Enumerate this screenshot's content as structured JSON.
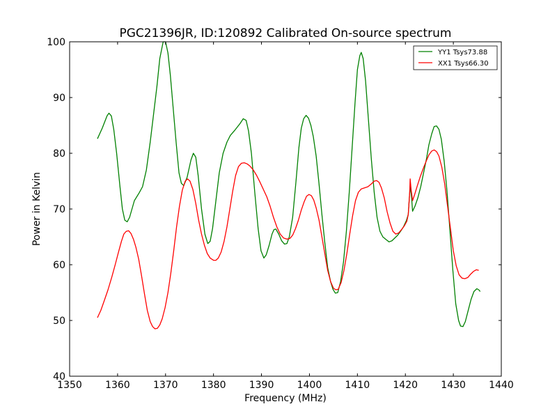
{
  "chart_data": {
    "type": "line",
    "title": "PGC21396JR, ID:120892 Calibrated On-source spectrum",
    "xlabel": "Frequency (MHz)",
    "ylabel": "Power in Kelvin",
    "xlim": [
      1350,
      1440
    ],
    "ylim": [
      40,
      100
    ],
    "xticks": [
      1350,
      1360,
      1370,
      1380,
      1390,
      1400,
      1410,
      1420,
      1430,
      1440
    ],
    "yticks": [
      40,
      50,
      60,
      70,
      80,
      90,
      100
    ],
    "grid": false,
    "legend_position": "top-right",
    "series": [
      {
        "name": "YY1 Tsys73.88",
        "color": "#008000",
        "points": [
          [
            1355.8,
            82.6
          ],
          [
            1356.8,
            84.5
          ],
          [
            1357.8,
            86.7
          ],
          [
            1358.2,
            87.2
          ],
          [
            1358.7,
            86.7
          ],
          [
            1359.2,
            84.3
          ],
          [
            1359.8,
            80.0
          ],
          [
            1360.5,
            74.0
          ],
          [
            1361.0,
            70.0
          ],
          [
            1361.5,
            68.0
          ],
          [
            1362.0,
            67.7
          ],
          [
            1362.5,
            68.5
          ],
          [
            1363.5,
            71.5
          ],
          [
            1364.5,
            72.9
          ],
          [
            1365.2,
            74.0
          ],
          [
            1366.0,
            77.0
          ],
          [
            1366.8,
            82.0
          ],
          [
            1367.5,
            87.0
          ],
          [
            1368.2,
            92.0
          ],
          [
            1368.8,
            97.0
          ],
          [
            1369.5,
            100.0
          ],
          [
            1370.0,
            100.0
          ],
          [
            1370.5,
            98.0
          ],
          [
            1371.0,
            94.0
          ],
          [
            1371.6,
            88.0
          ],
          [
            1372.2,
            82.0
          ],
          [
            1372.8,
            76.5
          ],
          [
            1373.3,
            74.6
          ],
          [
            1373.8,
            74.2
          ],
          [
            1374.5,
            75.7
          ],
          [
            1375.3,
            78.8
          ],
          [
            1375.8,
            80.0
          ],
          [
            1376.3,
            79.3
          ],
          [
            1376.8,
            76.0
          ],
          [
            1377.5,
            70.0
          ],
          [
            1378.2,
            65.5
          ],
          [
            1378.8,
            63.8
          ],
          [
            1379.3,
            64.2
          ],
          [
            1379.8,
            66.5
          ],
          [
            1380.5,
            71.5
          ],
          [
            1381.2,
            76.5
          ],
          [
            1382.0,
            80.0
          ],
          [
            1382.8,
            82.0
          ],
          [
            1383.5,
            83.2
          ],
          [
            1384.5,
            84.2
          ],
          [
            1385.5,
            85.3
          ],
          [
            1386.2,
            86.2
          ],
          [
            1386.8,
            85.9
          ],
          [
            1387.3,
            84.0
          ],
          [
            1387.9,
            80.0
          ],
          [
            1388.6,
            73.0
          ],
          [
            1389.3,
            66.5
          ],
          [
            1389.9,
            62.5
          ],
          [
            1390.5,
            61.2
          ],
          [
            1391.0,
            61.8
          ],
          [
            1391.6,
            63.5
          ],
          [
            1392.2,
            65.5
          ],
          [
            1392.6,
            66.3
          ],
          [
            1393.0,
            66.4
          ],
          [
            1393.6,
            65.5
          ],
          [
            1394.2,
            64.3
          ],
          [
            1394.8,
            63.7
          ],
          [
            1395.3,
            63.8
          ],
          [
            1395.8,
            65.0
          ],
          [
            1396.5,
            68.5
          ],
          [
            1397.2,
            75.0
          ],
          [
            1397.8,
            81.0
          ],
          [
            1398.3,
            84.5
          ],
          [
            1398.8,
            86.2
          ],
          [
            1399.3,
            86.8
          ],
          [
            1399.8,
            86.3
          ],
          [
            1400.3,
            85.0
          ],
          [
            1400.8,
            83.0
          ],
          [
            1401.4,
            79.5
          ],
          [
            1402.0,
            74.5
          ],
          [
            1402.6,
            69.0
          ],
          [
            1403.2,
            64.0
          ],
          [
            1403.8,
            59.5
          ],
          [
            1404.4,
            57.0
          ],
          [
            1404.9,
            55.6
          ],
          [
            1405.4,
            54.9
          ],
          [
            1405.9,
            55.0
          ],
          [
            1406.5,
            57.0
          ],
          [
            1407.1,
            60.5
          ],
          [
            1407.7,
            66.0
          ],
          [
            1408.3,
            73.0
          ],
          [
            1408.9,
            81.0
          ],
          [
            1409.5,
            89.0
          ],
          [
            1410.0,
            95.0
          ],
          [
            1410.5,
            97.5
          ],
          [
            1410.8,
            98.1
          ],
          [
            1411.2,
            97.0
          ],
          [
            1411.7,
            93.0
          ],
          [
            1412.3,
            86.0
          ],
          [
            1412.9,
            79.0
          ],
          [
            1413.5,
            73.0
          ],
          [
            1414.1,
            68.5
          ],
          [
            1414.7,
            66.0
          ],
          [
            1415.3,
            65.0
          ],
          [
            1416.0,
            64.5
          ],
          [
            1416.6,
            64.1
          ],
          [
            1417.2,
            64.3
          ],
          [
            1417.8,
            64.8
          ],
          [
            1418.4,
            65.3
          ],
          [
            1419.0,
            66.0
          ],
          [
            1419.6,
            66.8
          ],
          [
            1420.2,
            67.9
          ],
          [
            1420.6,
            69.0
          ],
          [
            1421.0,
            74.2
          ],
          [
            1421.3,
            72.0
          ],
          [
            1421.5,
            69.6
          ],
          [
            1422.0,
            70.5
          ],
          [
            1422.6,
            72.0
          ],
          [
            1423.2,
            74.0
          ],
          [
            1423.8,
            76.5
          ],
          [
            1424.4,
            79.0
          ],
          [
            1424.9,
            81.5
          ],
          [
            1425.5,
            83.5
          ],
          [
            1426.0,
            84.8
          ],
          [
            1426.5,
            84.9
          ],
          [
            1427.0,
            84.3
          ],
          [
            1427.5,
            82.5
          ],
          [
            1428.1,
            78.5
          ],
          [
            1428.7,
            73.0
          ],
          [
            1429.3,
            66.0
          ],
          [
            1429.9,
            59.0
          ],
          [
            1430.5,
            53.0
          ],
          [
            1431.1,
            50.0
          ],
          [
            1431.5,
            49.0
          ],
          [
            1432.0,
            48.9
          ],
          [
            1432.5,
            49.8
          ],
          [
            1433.1,
            51.8
          ],
          [
            1433.7,
            53.8
          ],
          [
            1434.3,
            55.2
          ],
          [
            1434.9,
            55.7
          ],
          [
            1435.3,
            55.5
          ],
          [
            1435.6,
            55.2
          ]
        ]
      },
      {
        "name": "XX1 Tsys66.30",
        "color": "#ff0000",
        "points": [
          [
            1355.8,
            50.5
          ],
          [
            1356.5,
            51.8
          ],
          [
            1357.2,
            53.5
          ],
          [
            1358.0,
            55.5
          ],
          [
            1358.8,
            57.8
          ],
          [
            1359.5,
            60.0
          ],
          [
            1360.2,
            62.3
          ],
          [
            1360.8,
            64.2
          ],
          [
            1361.3,
            65.5
          ],
          [
            1361.8,
            66.0
          ],
          [
            1362.3,
            66.1
          ],
          [
            1362.8,
            65.6
          ],
          [
            1363.3,
            64.6
          ],
          [
            1363.8,
            63.2
          ],
          [
            1364.4,
            61.0
          ],
          [
            1365.0,
            58.0
          ],
          [
            1365.6,
            54.8
          ],
          [
            1366.2,
            51.8
          ],
          [
            1366.8,
            49.8
          ],
          [
            1367.3,
            48.9
          ],
          [
            1367.8,
            48.5
          ],
          [
            1368.3,
            48.6
          ],
          [
            1368.8,
            49.2
          ],
          [
            1369.3,
            50.3
          ],
          [
            1369.9,
            52.3
          ],
          [
            1370.5,
            55.0
          ],
          [
            1371.1,
            58.5
          ],
          [
            1371.7,
            62.5
          ],
          [
            1372.3,
            66.8
          ],
          [
            1372.9,
            70.5
          ],
          [
            1373.5,
            73.4
          ],
          [
            1374.1,
            75.0
          ],
          [
            1374.6,
            75.4
          ],
          [
            1375.1,
            75.0
          ],
          [
            1375.7,
            73.5
          ],
          [
            1376.3,
            71.0
          ],
          [
            1376.9,
            68.0
          ],
          [
            1377.5,
            65.5
          ],
          [
            1378.1,
            63.5
          ],
          [
            1378.7,
            62.0
          ],
          [
            1379.3,
            61.2
          ],
          [
            1380.0,
            60.8
          ],
          [
            1380.5,
            60.8
          ],
          [
            1381.0,
            61.2
          ],
          [
            1381.6,
            62.3
          ],
          [
            1382.2,
            64.2
          ],
          [
            1382.8,
            66.8
          ],
          [
            1383.4,
            70.0
          ],
          [
            1384.0,
            73.2
          ],
          [
            1384.6,
            76.0
          ],
          [
            1385.2,
            77.6
          ],
          [
            1385.8,
            78.2
          ],
          [
            1386.4,
            78.3
          ],
          [
            1387.0,
            78.1
          ],
          [
            1387.6,
            77.7
          ],
          [
            1388.3,
            77.0
          ],
          [
            1389.0,
            76.0
          ],
          [
            1389.7,
            74.8
          ],
          [
            1390.4,
            73.5
          ],
          [
            1391.1,
            72.2
          ],
          [
            1391.8,
            70.5
          ],
          [
            1392.5,
            68.5
          ],
          [
            1393.2,
            66.8
          ],
          [
            1393.9,
            65.5
          ],
          [
            1394.6,
            64.8
          ],
          [
            1395.3,
            64.6
          ],
          [
            1395.9,
            64.7
          ],
          [
            1396.5,
            65.3
          ],
          [
            1397.1,
            66.5
          ],
          [
            1397.7,
            68.0
          ],
          [
            1398.3,
            69.8
          ],
          [
            1398.9,
            71.3
          ],
          [
            1399.4,
            72.3
          ],
          [
            1399.9,
            72.6
          ],
          [
            1400.4,
            72.4
          ],
          [
            1400.9,
            71.6
          ],
          [
            1401.4,
            70.2
          ],
          [
            1402.0,
            68.0
          ],
          [
            1402.6,
            65.0
          ],
          [
            1403.2,
            62.0
          ],
          [
            1403.8,
            59.0
          ],
          [
            1404.4,
            57.0
          ],
          [
            1405.0,
            55.8
          ],
          [
            1405.5,
            55.5
          ],
          [
            1406.0,
            55.6
          ],
          [
            1406.6,
            56.8
          ],
          [
            1407.2,
            59.0
          ],
          [
            1407.8,
            62.0
          ],
          [
            1408.4,
            65.5
          ],
          [
            1409.0,
            68.8
          ],
          [
            1409.6,
            71.5
          ],
          [
            1410.2,
            73.0
          ],
          [
            1410.8,
            73.6
          ],
          [
            1411.5,
            73.8
          ],
          [
            1412.2,
            74.0
          ],
          [
            1412.9,
            74.5
          ],
          [
            1413.5,
            75.0
          ],
          [
            1414.0,
            75.1
          ],
          [
            1414.5,
            74.8
          ],
          [
            1415.0,
            73.8
          ],
          [
            1415.6,
            72.0
          ],
          [
            1416.2,
            69.5
          ],
          [
            1416.8,
            67.5
          ],
          [
            1417.4,
            66.0
          ],
          [
            1418.0,
            65.5
          ],
          [
            1418.6,
            65.7
          ],
          [
            1419.2,
            66.3
          ],
          [
            1419.8,
            67.0
          ],
          [
            1420.3,
            67.8
          ],
          [
            1420.6,
            69.0
          ],
          [
            1420.9,
            73.0
          ],
          [
            1421.0,
            75.4
          ],
          [
            1421.2,
            73.5
          ],
          [
            1421.5,
            71.5
          ],
          [
            1421.9,
            72.5
          ],
          [
            1422.5,
            74.2
          ],
          [
            1423.1,
            75.8
          ],
          [
            1423.7,
            77.2
          ],
          [
            1424.3,
            78.5
          ],
          [
            1424.9,
            79.7
          ],
          [
            1425.5,
            80.4
          ],
          [
            1426.0,
            80.6
          ],
          [
            1426.5,
            80.3
          ],
          [
            1427.0,
            79.5
          ],
          [
            1427.6,
            77.5
          ],
          [
            1428.2,
            74.5
          ],
          [
            1428.8,
            70.5
          ],
          [
            1429.4,
            66.5
          ],
          [
            1430.0,
            62.5
          ],
          [
            1430.6,
            59.8
          ],
          [
            1431.2,
            58.2
          ],
          [
            1431.8,
            57.6
          ],
          [
            1432.4,
            57.5
          ],
          [
            1433.0,
            57.7
          ],
          [
            1433.6,
            58.3
          ],
          [
            1434.2,
            58.8
          ],
          [
            1434.8,
            59.1
          ],
          [
            1435.3,
            59.0
          ]
        ]
      }
    ]
  }
}
